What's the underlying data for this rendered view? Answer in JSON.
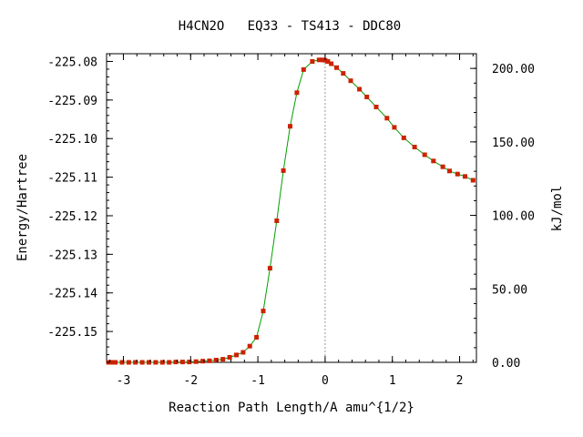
{
  "chart_data": {
    "type": "line",
    "title": "H4CN2O   EQ33 - TS413 - DDC80",
    "xlabel": "Reaction Path Length/A amu^{1/2}",
    "ylabel": "Energy/Hartree",
    "y2label": "kJ/mol",
    "xlim": [
      -3.25,
      2.25
    ],
    "ylim": [
      -225.158,
      -225.078
    ],
    "y2lim": [
      0.0,
      210.0
    ],
    "grid": false,
    "legend": "none",
    "x_ticks": [
      -3,
      -2,
      -1,
      0,
      1,
      2
    ],
    "x_tick_labels": [
      "-3",
      "-2",
      "-1",
      "0",
      "1",
      "2"
    ],
    "y_ticks": [
      -225.15,
      -225.14,
      -225.13,
      -225.12,
      -225.11,
      -225.1,
      -225.09,
      -225.08
    ],
    "y_tick_labels": [
      "-225.15",
      "-225.14",
      "-225.13",
      "-225.12",
      "-225.11",
      "-225.10",
      "-225.09",
      "-225.08"
    ],
    "y2_ticks": [
      0,
      50,
      100,
      150,
      200
    ],
    "y2_tick_labels": [
      "0.00",
      "50.00",
      "100.00",
      "150.00",
      "200.00"
    ],
    "ts_x": 0.0,
    "colors": {
      "line": "#00a000",
      "marker": "#cc2200",
      "ts_line": "#999999",
      "axis": "#000000"
    },
    "series": [
      {
        "x": [
          -3.22,
          -3.17,
          -3.12,
          -3.02,
          -2.92,
          -2.82,
          -2.72,
          -2.62,
          -2.52,
          -2.42,
          -2.32,
          -2.22,
          -2.12,
          -2.02,
          -1.92,
          -1.82,
          -1.72,
          -1.62,
          -1.52,
          -1.42,
          -1.32,
          -1.22,
          -1.12,
          -1.02,
          -0.92,
          -0.82,
          -0.72,
          -0.62,
          -0.52,
          -0.42,
          -0.32,
          -0.19,
          -0.09,
          -0.04,
          0.0,
          0.04,
          0.09,
          0.17,
          0.27,
          0.38,
          0.51,
          0.62,
          0.76,
          0.92,
          1.03,
          1.17,
          1.33,
          1.48,
          1.61,
          1.75,
          1.85,
          1.97,
          2.08,
          2.2
        ],
        "y": [
          -225.158,
          -225.158,
          -225.158,
          -225.158,
          -225.158,
          -225.158,
          -225.158,
          -225.158,
          -225.158,
          -225.158,
          -225.158,
          -225.1579,
          -225.1579,
          -225.1579,
          -225.1578,
          -225.1577,
          -225.1576,
          -225.1574,
          -225.1572,
          -225.1567,
          -225.1561,
          -225.1554,
          -225.1538,
          -225.1515,
          -225.1447,
          -225.1336,
          -225.1213,
          -225.1083,
          -225.0968,
          -225.0881,
          -225.0821,
          -225.08,
          -225.0796,
          -225.0796,
          -225.0797,
          -225.08,
          -225.0806,
          -225.0816,
          -225.0831,
          -225.085,
          -225.0872,
          -225.0892,
          -225.0918,
          -225.0947,
          -225.0971,
          -225.0998,
          -225.1022,
          -225.1042,
          -225.1058,
          -225.1073,
          -225.1084,
          -225.1092,
          -225.1098,
          -225.1108
        ]
      }
    ]
  }
}
